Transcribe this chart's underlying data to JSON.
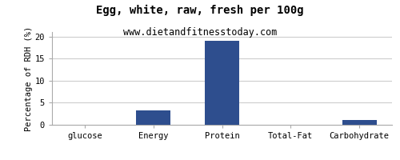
{
  "title": "Egg, white, raw, fresh per 100g",
  "subtitle": "www.dietandfitnesstoday.com",
  "categories": [
    "glucose",
    "Energy",
    "Protein",
    "Total-Fat",
    "Carbohydrate"
  ],
  "values": [
    0,
    3.3,
    19.0,
    0.05,
    1.0
  ],
  "bar_color": "#2e4e8e",
  "ylabel": "Percentage of RDH (%)",
  "ylim": [
    0,
    21
  ],
  "yticks": [
    0,
    5,
    10,
    15,
    20
  ],
  "background_color": "#ffffff",
  "plot_bg_color": "#ffffff",
  "title_fontsize": 10,
  "subtitle_fontsize": 8.5,
  "ylabel_fontsize": 7.5,
  "tick_fontsize": 7.5,
  "grid_color": "#cccccc"
}
